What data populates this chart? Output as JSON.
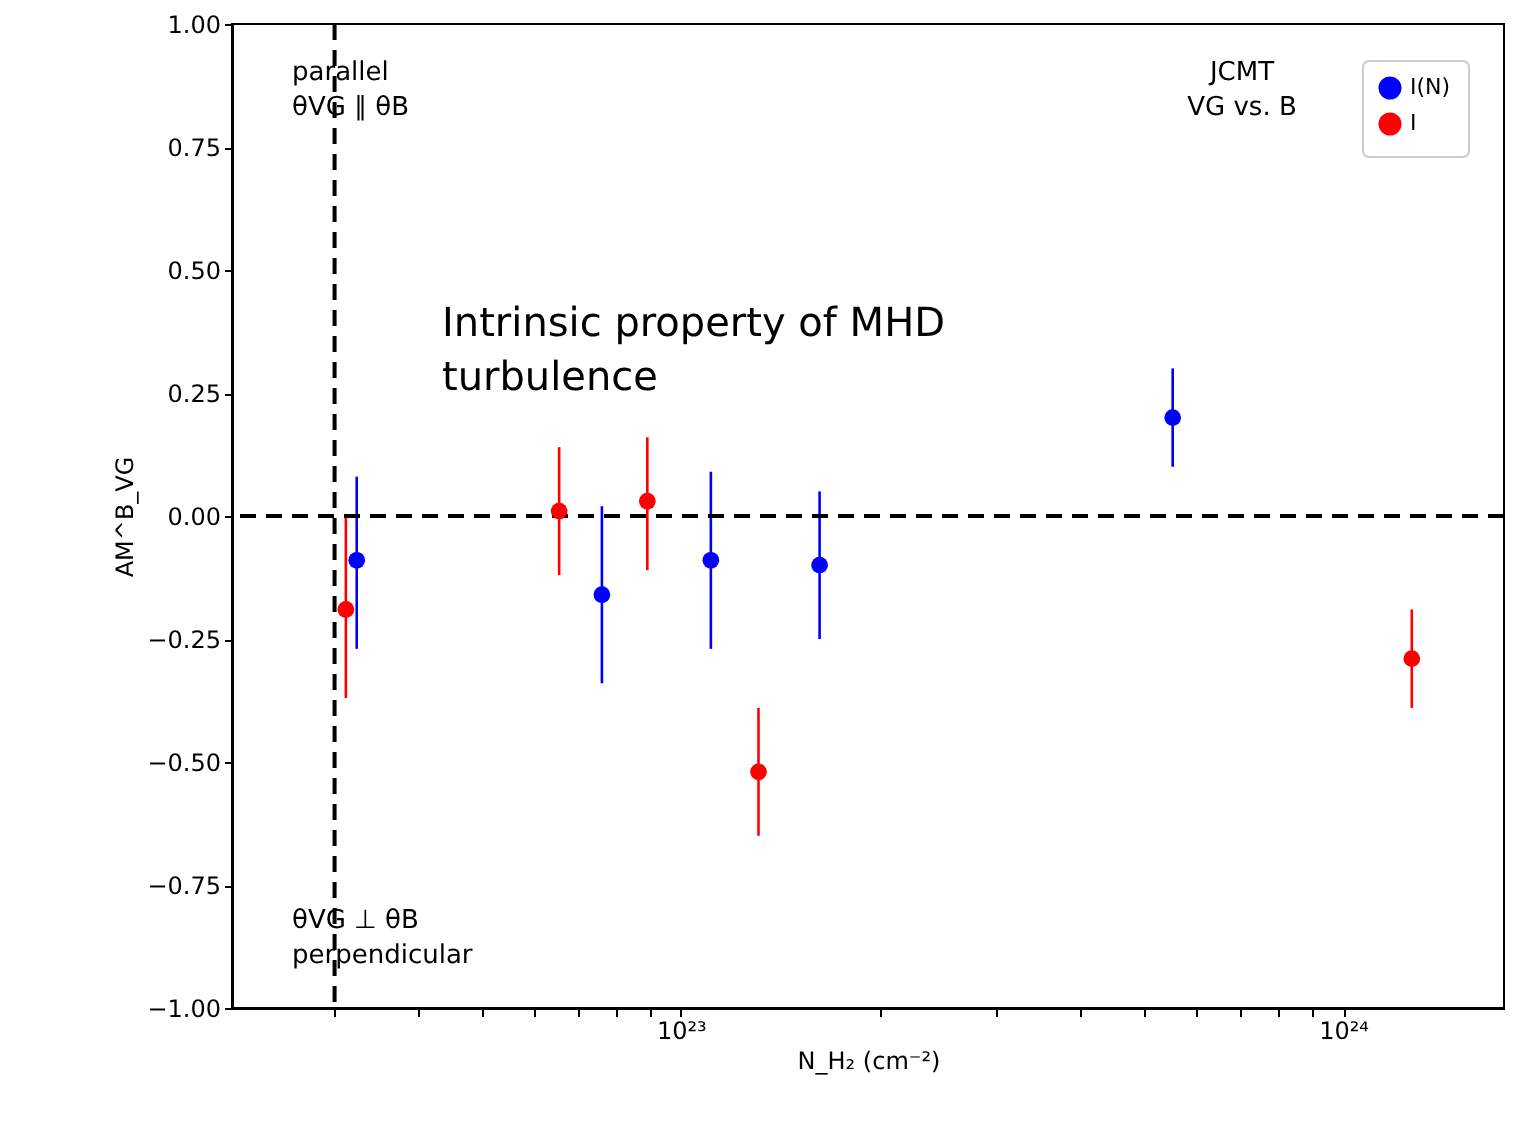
{
  "chart_data": {
    "type": "scatter",
    "xlabel": "N_H₂ (cm⁻²)",
    "ylabel": "AM^B_VG",
    "log": "x",
    "grid": false,
    "legend": "top right",
    "marker": "circle",
    "xlim": [
      2.1e+22,
      1.75e+24
    ],
    "xticks": [
      {
        "value": 3e+22,
        "label": null
      },
      {
        "value": 4e+22,
        "label": null
      },
      {
        "value": 5e+22,
        "label": null
      },
      {
        "value": 6e+22,
        "label": null
      },
      {
        "value": 7e+22,
        "label": null
      },
      {
        "value": 8e+22,
        "label": null
      },
      {
        "value": 9e+22,
        "label": null
      },
      {
        "value": 1e+23,
        "label": "10²³"
      },
      {
        "value": 2e+23,
        "label": null
      },
      {
        "value": 3e+23,
        "label": null
      },
      {
        "value": 4e+23,
        "label": null
      },
      {
        "value": 5e+23,
        "label": null
      },
      {
        "value": 6e+23,
        "label": null
      },
      {
        "value": 7e+23,
        "label": null
      },
      {
        "value": 8e+23,
        "label": null
      },
      {
        "value": 9e+23,
        "label": null
      },
      {
        "value": 1e+24,
        "label": "10²⁴"
      }
    ],
    "ylim": [
      -1.0,
      1.0
    ],
    "yticks": [
      {
        "value": -1.0,
        "label": "−1.00"
      },
      {
        "value": -0.75,
        "label": "−0.75"
      },
      {
        "value": -0.5,
        "label": "−0.50"
      },
      {
        "value": -0.25,
        "label": "−0.25"
      },
      {
        "value": 0,
        "label": "0.00"
      },
      {
        "value": 0.25,
        "label": "0.25"
      },
      {
        "value": 0.5,
        "label": "0.50"
      },
      {
        "value": 0.75,
        "label": "0.75"
      },
      {
        "value": 1.0,
        "label": "1.00"
      }
    ],
    "series": [
      {
        "name": "I(N)",
        "color": "#0000ff",
        "x": [
          3.24e+22,
          7.6e+22,
          1.11e+23,
          1.62e+23,
          5.53e+23
        ],
        "values": [
          -0.09,
          -0.16,
          -0.09,
          -0.1,
          0.2
        ],
        "errors": [
          [
            -0.27,
            0.08
          ],
          [
            -0.34,
            0.02
          ],
          [
            -0.27,
            0.09
          ],
          [
            -0.25,
            0.05
          ],
          [
            0.1,
            0.3
          ]
        ]
      },
      {
        "name": "I",
        "color": "#ff0000",
        "x": [
          3.12e+22,
          6.55e+22,
          8.9e+22,
          1.31e+23,
          1.27e+24
        ],
        "values": [
          -0.19,
          0.01,
          0.03,
          -0.52,
          -0.29
        ],
        "errors": [
          [
            -0.37,
            0.0
          ],
          [
            -0.12,
            0.14
          ],
          [
            -0.11,
            0.16
          ],
          [
            -0.65,
            -0.39
          ],
          [
            -0.39,
            -0.19
          ]
        ]
      }
    ],
    "ref_lines": [
      {
        "axis": "y",
        "value": 0,
        "color": "#000000",
        "line_style": "dashed"
      },
      {
        "axis": "x",
        "value": 3e+22,
        "color": "#000000",
        "line_style": "dashed"
      }
    ],
    "annotations": [
      "parallel\nθVG ∥ θB",
      "JCMT\nVG vs. B",
      "Intrinsic property of MHD\nturbulence",
      "θVG ⊥ θB\nperpendicular"
    ]
  }
}
